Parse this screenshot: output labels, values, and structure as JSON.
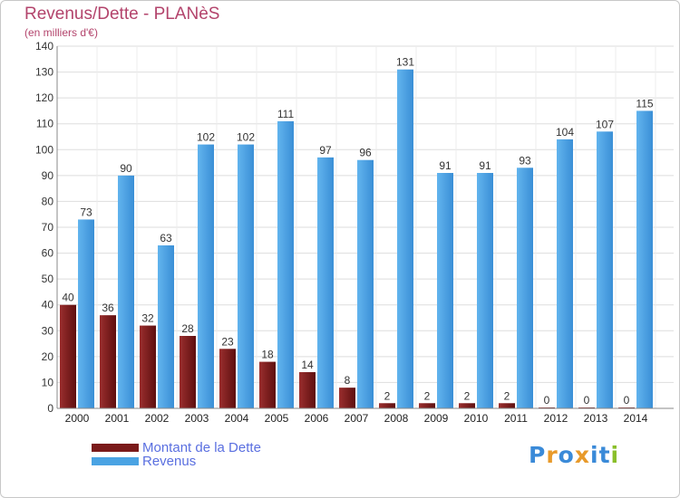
{
  "title": "Revenus/Dette - PLANèS",
  "subtitle": "(en milliers d'€)",
  "chart_data": {
    "type": "bar",
    "categories": [
      "2000",
      "2001",
      "2002",
      "2003",
      "2004",
      "2005",
      "2006",
      "2007",
      "2008",
      "2009",
      "2010",
      "2011",
      "2012",
      "2013",
      "2014"
    ],
    "series": [
      {
        "name": "Montant de la Dette",
        "values": [
          40,
          36,
          32,
          28,
          23,
          18,
          14,
          8,
          2,
          2,
          2,
          2,
          0,
          0,
          0
        ],
        "color": "#7a1a1a"
      },
      {
        "name": "Revenus",
        "values": [
          73,
          90,
          63,
          102,
          102,
          111,
          97,
          96,
          131,
          91,
          91,
          93,
          104,
          107,
          115
        ],
        "color": "#4aa3e3"
      }
    ],
    "ylim": [
      0,
      140
    ],
    "yticks": [
      0,
      10,
      20,
      30,
      40,
      50,
      60,
      70,
      80,
      90,
      100,
      110,
      120,
      130,
      140
    ],
    "grid": true,
    "legend_position": "bottom-left"
  },
  "legend": {
    "items": [
      {
        "label": "Montant de la Dette",
        "color": "#7a1a1a"
      },
      {
        "label": "Revenus",
        "color": "#4aa3e3"
      }
    ]
  },
  "logo": {
    "text": "Proxiti",
    "letter_colors": [
      "#3a8ad8",
      "#e89a2a",
      "#3a8ad8",
      "#e89a2a",
      "#3a8ad8",
      "#3a8ad8",
      "#8abf2a"
    ]
  }
}
